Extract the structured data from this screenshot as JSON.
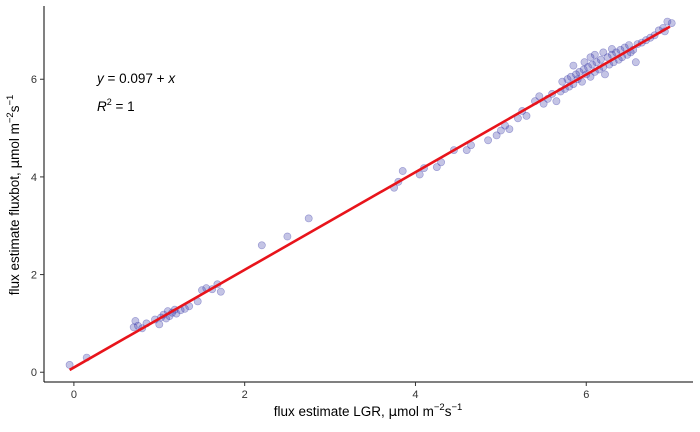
{
  "chart_data": {
    "type": "scatter",
    "title": "",
    "xlabel": "flux estimate LGR, μmol m⁻²s⁻¹",
    "ylabel": "flux estimate fluxbot, μmol m⁻²s⁻¹",
    "xlim": [
      -0.35,
      7.25
    ],
    "ylim": [
      -0.2,
      7.5
    ],
    "x_ticks": [
      "0",
      "2",
      "4",
      "6"
    ],
    "y_ticks": [
      "0",
      "2",
      "4",
      "6"
    ],
    "grid": false,
    "legend": "none",
    "annotations": {
      "equation": "y = 0.097 + x",
      "r_squared": "R² = 1"
    },
    "fit_line": {
      "intercept": 0.097,
      "slope": 1.0,
      "x_range": [
        -0.05,
        6.98
      ],
      "color": "#e8141b"
    },
    "point_color": "#3a3aa8",
    "points": [
      [
        -0.05,
        0.15
      ],
      [
        0.15,
        0.3
      ],
      [
        0.7,
        0.92
      ],
      [
        0.72,
        1.05
      ],
      [
        0.75,
        0.95
      ],
      [
        0.8,
        0.9
      ],
      [
        0.85,
        1.0
      ],
      [
        0.95,
        1.08
      ],
      [
        1.0,
        0.98
      ],
      [
        1.02,
        1.12
      ],
      [
        1.05,
        1.18
      ],
      [
        1.08,
        1.1
      ],
      [
        1.1,
        1.25
      ],
      [
        1.12,
        1.15
      ],
      [
        1.15,
        1.22
      ],
      [
        1.18,
        1.28
      ],
      [
        1.2,
        1.2
      ],
      [
        1.25,
        1.27
      ],
      [
        1.3,
        1.3
      ],
      [
        1.35,
        1.35
      ],
      [
        1.45,
        1.45
      ],
      [
        1.5,
        1.68
      ],
      [
        1.55,
        1.72
      ],
      [
        1.62,
        1.7
      ],
      [
        1.68,
        1.8
      ],
      [
        1.72,
        1.65
      ],
      [
        2.2,
        2.6
      ],
      [
        2.5,
        2.78
      ],
      [
        2.75,
        3.15
      ],
      [
        3.75,
        3.78
      ],
      [
        3.8,
        3.9
      ],
      [
        3.85,
        4.12
      ],
      [
        4.05,
        4.05
      ],
      [
        4.1,
        4.18
      ],
      [
        4.25,
        4.2
      ],
      [
        4.3,
        4.3
      ],
      [
        4.45,
        4.55
      ],
      [
        4.6,
        4.55
      ],
      [
        4.65,
        4.65
      ],
      [
        4.85,
        4.75
      ],
      [
        4.95,
        4.85
      ],
      [
        5.0,
        4.95
      ],
      [
        5.05,
        5.05
      ],
      [
        5.1,
        4.98
      ],
      [
        5.2,
        5.2
      ],
      [
        5.25,
        5.35
      ],
      [
        5.3,
        5.25
      ],
      [
        5.4,
        5.55
      ],
      [
        5.45,
        5.65
      ],
      [
        5.5,
        5.5
      ],
      [
        5.55,
        5.6
      ],
      [
        5.6,
        5.7
      ],
      [
        5.65,
        5.55
      ],
      [
        5.7,
        5.75
      ],
      [
        5.72,
        5.95
      ],
      [
        5.75,
        5.8
      ],
      [
        5.78,
        6.0
      ],
      [
        5.8,
        5.85
      ],
      [
        5.82,
        6.05
      ],
      [
        5.85,
        5.9
      ],
      [
        5.88,
        6.1
      ],
      [
        5.9,
        6.0
      ],
      [
        5.92,
        6.15
      ],
      [
        5.95,
        5.95
      ],
      [
        5.97,
        6.2
      ],
      [
        6.0,
        6.1
      ],
      [
        6.02,
        6.25
      ],
      [
        6.05,
        6.05
      ],
      [
        6.07,
        6.3
      ],
      [
        6.1,
        6.15
      ],
      [
        6.12,
        6.35
      ],
      [
        6.15,
        6.2
      ],
      [
        6.17,
        6.4
      ],
      [
        6.2,
        6.25
      ],
      [
        6.22,
        6.1
      ],
      [
        6.25,
        6.45
      ],
      [
        6.27,
        6.3
      ],
      [
        6.3,
        6.5
      ],
      [
        6.32,
        6.35
      ],
      [
        6.35,
        6.55
      ],
      [
        6.38,
        6.4
      ],
      [
        6.4,
        6.6
      ],
      [
        6.42,
        6.45
      ],
      [
        6.45,
        6.65
      ],
      [
        6.48,
        6.5
      ],
      [
        6.5,
        6.7
      ],
      [
        6.52,
        6.55
      ],
      [
        6.55,
        6.6
      ],
      [
        5.98,
        6.35
      ],
      [
        6.05,
        6.45
      ],
      [
        5.85,
        6.28
      ],
      [
        6.1,
        6.5
      ],
      [
        6.2,
        6.55
      ],
      [
        6.3,
        6.62
      ],
      [
        6.58,
        6.35
      ],
      [
        6.6,
        6.72
      ],
      [
        6.65,
        6.75
      ],
      [
        6.7,
        6.8
      ],
      [
        6.8,
        6.9
      ],
      [
        6.85,
        7.0
      ],
      [
        6.9,
        7.05
      ],
      [
        6.95,
        7.18
      ],
      [
        7.0,
        7.15
      ],
      [
        6.75,
        6.85
      ],
      [
        6.92,
        6.98
      ]
    ]
  }
}
